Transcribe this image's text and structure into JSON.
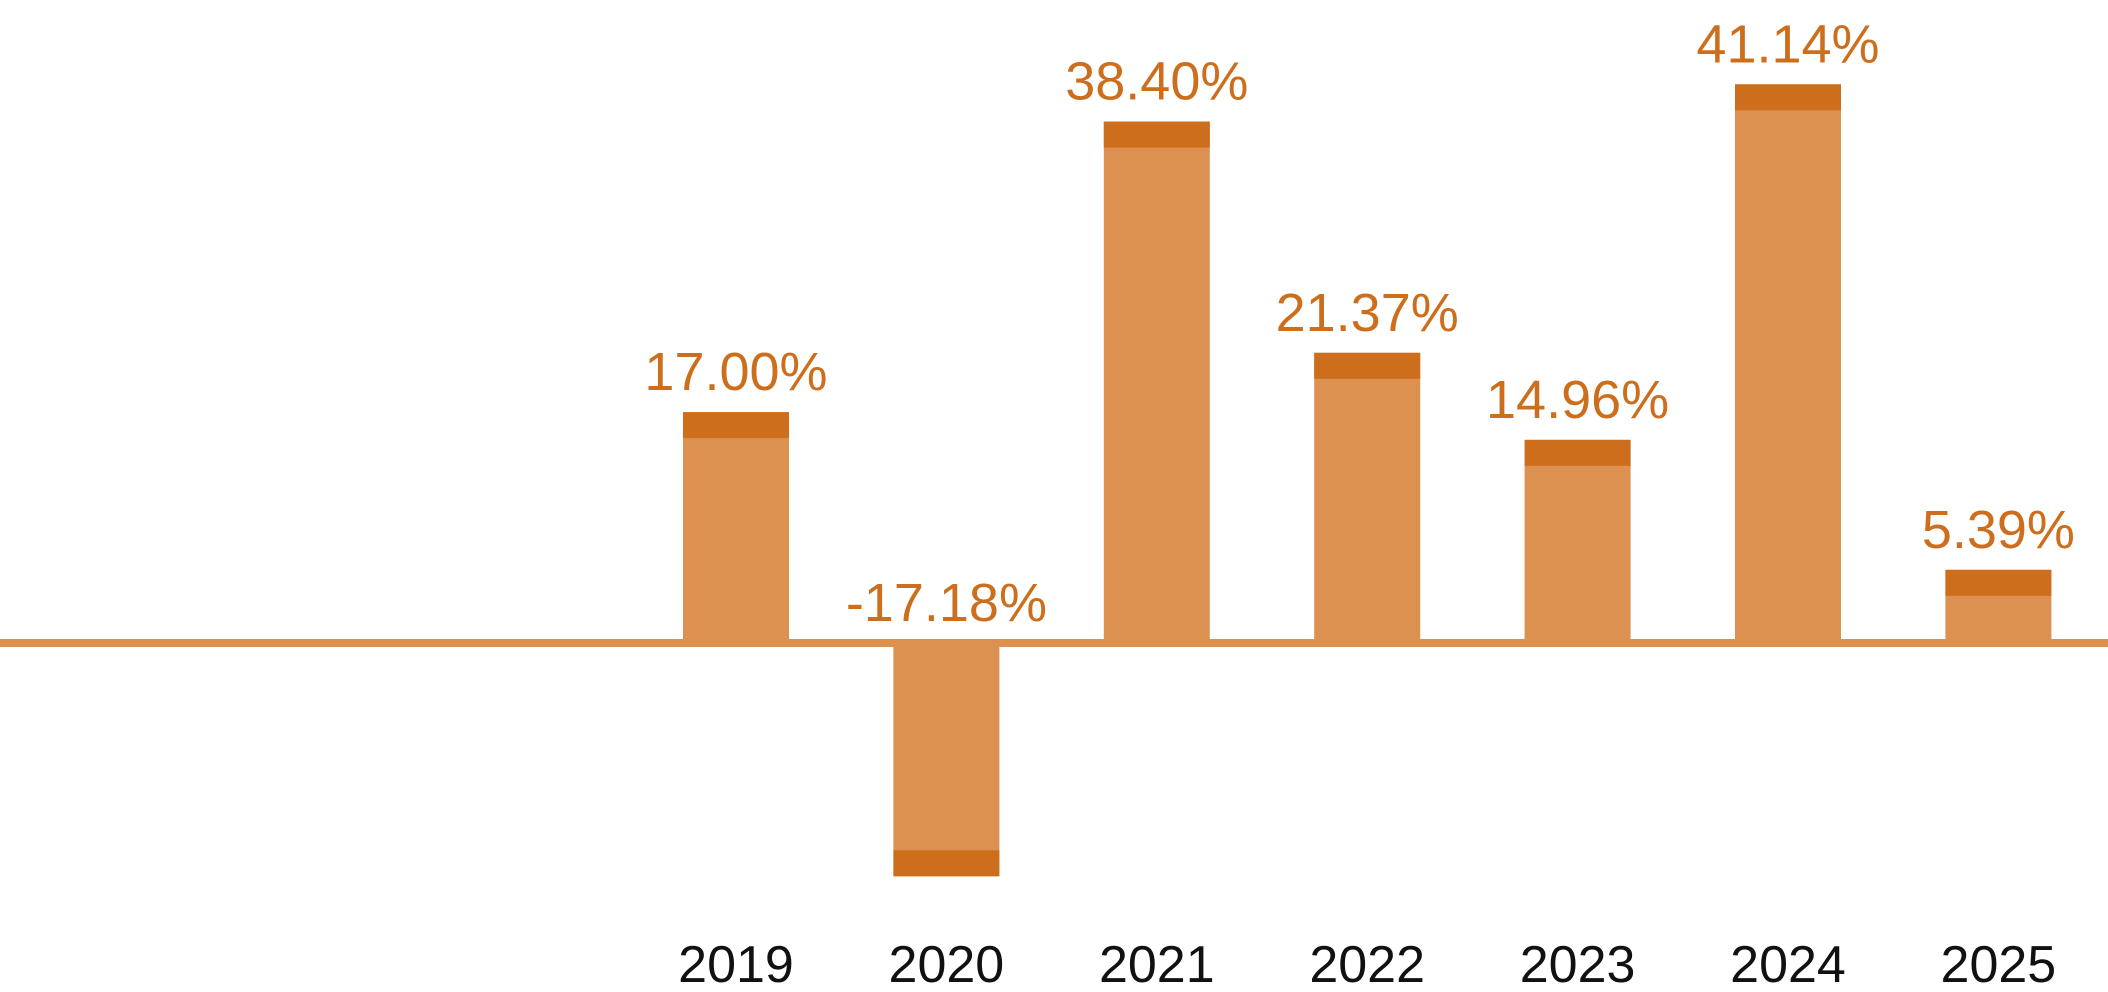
{
  "chart_data": {
    "type": "bar",
    "title": "",
    "xlabel": "",
    "ylabel": "",
    "categories": [
      "2019",
      "2020",
      "2021",
      "2022",
      "2023",
      "2024",
      "2025"
    ],
    "values": [
      17.0,
      -17.18,
      38.4,
      21.37,
      14.96,
      41.14,
      5.39
    ],
    "value_labels": [
      "17.00%",
      "-17.18%",
      "38.40%",
      "21.37%",
      "14.96%",
      "41.14%",
      "5.39%"
    ],
    "ylim": [
      -17.18,
      41.14
    ],
    "grid": false,
    "legend": "none",
    "colors": {
      "bar": "#DC9151",
      "cap": "#CC6E1C",
      "label": "#CC6E1C",
      "axis": "#DC9151",
      "tick": "#111111"
    }
  }
}
